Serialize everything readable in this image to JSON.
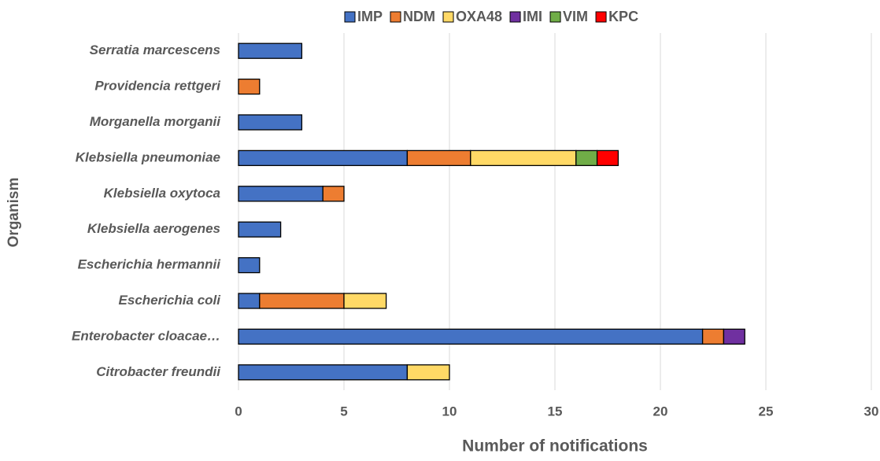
{
  "chart_data": {
    "type": "stacked-bar-horizontal",
    "x_label": "Number of notifications",
    "y_label": "Organism",
    "categories": [
      "Serratia marcescens",
      "Providencia rettgeri",
      "Morganella morganii",
      "Klebsiella pneumoniae",
      "Klebsiella oxytoca",
      "Klebsiella aerogenes",
      "Escherichia hermannii",
      "Escherichia coli",
      "Enterobacter cloacae…",
      "Citrobacter freundii"
    ],
    "series": [
      {
        "name": "IMP",
        "color": "#4472c4",
        "values": [
          3,
          null,
          3,
          8,
          4,
          2,
          1,
          1,
          22,
          8
        ]
      },
      {
        "name": "NDM",
        "color": "#ed7d31",
        "values": [
          null,
          1,
          null,
          3,
          1,
          null,
          null,
          4,
          1,
          null
        ]
      },
      {
        "name": "OXA48",
        "color": "#ffd966",
        "values": [
          null,
          null,
          null,
          5,
          null,
          null,
          null,
          2,
          null,
          2
        ]
      },
      {
        "name": "IMI",
        "color": "#7030a0",
        "values": [
          null,
          null,
          null,
          null,
          null,
          null,
          null,
          null,
          1,
          null
        ]
      },
      {
        "name": "VIM",
        "color": "#70ad47",
        "values": [
          null,
          null,
          null,
          1,
          null,
          null,
          null,
          null,
          null,
          null
        ]
      },
      {
        "name": "KPC",
        "color": "#ff0000",
        "values": [
          null,
          null,
          null,
          1,
          null,
          null,
          null,
          null,
          null,
          null
        ]
      }
    ],
    "xlim": [
      0,
      30
    ],
    "xticks": [
      0,
      5,
      10,
      15,
      20,
      25,
      30
    ],
    "grid": true,
    "legend": "top"
  }
}
